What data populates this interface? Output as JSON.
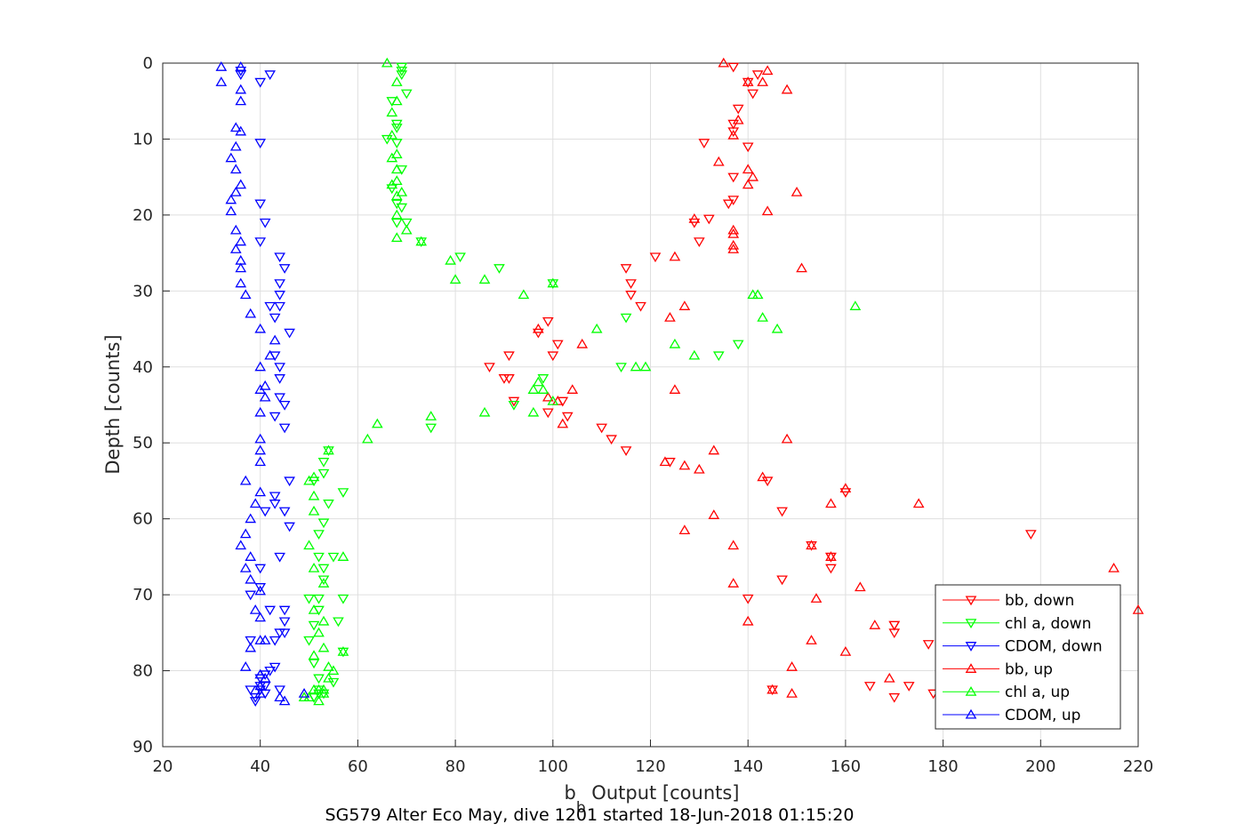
{
  "chart_data": {
    "type": "scatter",
    "title": "",
    "xlabel": "b",
    "xlabel_subscript": "b",
    "xlabel_suffix": " Output [counts]",
    "ylabel": "Depth [counts]",
    "caption": "SG579 Alter Eco May, dive 1201 started 18-Jun-2018 01:15:20",
    "xlim": [
      20,
      220
    ],
    "ylim": [
      0,
      90
    ],
    "y_reversed": true,
    "grid": true,
    "legend_position": "bottom-right",
    "x_ticks": [
      "20",
      "40",
      "60",
      "80",
      "100",
      "120",
      "140",
      "160",
      "180",
      "200",
      "220"
    ],
    "y_ticks": [
      "0",
      "10",
      "20",
      "30",
      "40",
      "50",
      "60",
      "70",
      "80",
      "90"
    ],
    "series": [
      {
        "name": "bb, down",
        "color": "#ff0000",
        "marker": "triangle-down",
        "x": [
          137,
          142,
          140,
          141,
          138,
          137,
          137,
          131,
          140,
          137,
          137,
          136,
          132,
          129,
          130,
          121,
          115,
          116,
          116,
          118,
          99,
          97,
          101,
          100,
          91,
          87,
          90,
          91,
          92,
          102,
          99,
          103,
          110,
          112,
          115,
          124,
          147,
          153,
          157,
          157,
          147,
          140,
          170,
          170,
          170,
          177,
          173,
          178,
          170,
          157,
          198,
          145,
          160,
          165,
          144
        ],
        "y": [
          0.5,
          1.5,
          2.5,
          4,
          6,
          8,
          9,
          10.5,
          11,
          15,
          18,
          18.5,
          20.5,
          21,
          23.5,
          25.5,
          27,
          29,
          30.5,
          32,
          34,
          35.5,
          37,
          38.5,
          38.5,
          40,
          41.5,
          41.5,
          44.5,
          44.5,
          46,
          46.5,
          48,
          49.5,
          51,
          52.5,
          59,
          63.5,
          65,
          66.5,
          68,
          70.5,
          74,
          75,
          74,
          76.5,
          82,
          83,
          83.5,
          65,
          62,
          82.5,
          56.5,
          82,
          55
        ]
      },
      {
        "name": "chl a, down",
        "color": "#00ff00",
        "marker": "triangle-down",
        "x": [
          69,
          69,
          70,
          67,
          68,
          68,
          66,
          68,
          69,
          67,
          68,
          69,
          68,
          70,
          73,
          81,
          89,
          100,
          115,
          138,
          134,
          114,
          92,
          98,
          69,
          75,
          53,
          57,
          54,
          53,
          52,
          52,
          53,
          53,
          52,
          52,
          51,
          50,
          51,
          52,
          53,
          52,
          51,
          52,
          51,
          55,
          57,
          55,
          56,
          57,
          53,
          51,
          50,
          54
        ],
        "y": [
          1,
          1.5,
          4,
          5,
          8,
          8.5,
          10,
          10.5,
          14,
          16.5,
          18.5,
          19,
          21,
          21,
          23.5,
          25.5,
          27,
          29,
          33.5,
          37,
          38.5,
          40,
          45,
          41.5,
          0.5,
          48,
          52.5,
          56.5,
          58,
          60.5,
          62,
          65,
          66.5,
          68,
          70.5,
          72,
          74,
          76,
          79,
          81,
          83,
          82.5,
          83.5,
          83,
          83.5,
          81.5,
          77.5,
          65,
          73.5,
          70.5,
          54,
          55,
          70.5,
          51
        ]
      },
      {
        "name": "CDOM, down",
        "color": "#0000ff",
        "marker": "triangle-down",
        "x": [
          36,
          42,
          36,
          40,
          40,
          40,
          41,
          40,
          44,
          45,
          44,
          44,
          42,
          44,
          43,
          46,
          43,
          44,
          44,
          45,
          44,
          43,
          45,
          46,
          43,
          43,
          41,
          45,
          46,
          44,
          40,
          40,
          38,
          38,
          42,
          42,
          40,
          40,
          38,
          41,
          43,
          45,
          45,
          45,
          44,
          43,
          41,
          41,
          39,
          39,
          40,
          44
        ],
        "y": [
          1,
          1.5,
          1.5,
          2.5,
          10.5,
          18.5,
          21,
          23.5,
          25.5,
          27,
          29,
          30.5,
          32,
          32,
          33.5,
          35.5,
          38.5,
          40,
          41.5,
          45,
          44,
          46.5,
          48,
          55,
          57,
          58,
          59,
          59,
          61,
          65,
          66.5,
          69,
          70,
          76,
          72,
          80,
          81,
          82,
          82.5,
          83,
          79.5,
          75,
          73.5,
          72,
          75,
          76,
          80.5,
          82,
          83.5,
          84,
          82.5,
          82.5
        ]
      },
      {
        "name": "bb, up",
        "color": "#ff0000",
        "marker": "triangle-up",
        "x": [
          135,
          144,
          143,
          140,
          148,
          138,
          137,
          134,
          140,
          141,
          140,
          150,
          137,
          144,
          137,
          137,
          137,
          125,
          151,
          127,
          124,
          129,
          106,
          104,
          125,
          101,
          97,
          102,
          99,
          148,
          133,
          127,
          123,
          130,
          143,
          160,
          157,
          175,
          137,
          133,
          127,
          153,
          157,
          137,
          163,
          154,
          166,
          140,
          160,
          153,
          149,
          169,
          145,
          149,
          215,
          220
        ],
        "y": [
          0,
          1,
          2.5,
          2.5,
          3.5,
          7.5,
          9.5,
          13,
          14,
          15,
          16,
          17,
          22,
          19.5,
          22.5,
          24,
          24.5,
          25.5,
          27,
          32,
          33.5,
          20.5,
          37,
          43,
          43,
          44.5,
          35,
          47.5,
          44,
          49.5,
          51,
          53,
          52.5,
          53.5,
          54.5,
          56,
          58,
          58,
          63.5,
          59.5,
          61.5,
          63.5,
          65,
          68.5,
          69,
          70.5,
          74,
          73.5,
          77.5,
          76,
          79.5,
          81,
          82.5,
          83,
          66.5,
          72
        ]
      },
      {
        "name": "chl a, up",
        "color": "#00ff00",
        "marker": "triangle-up",
        "x": [
          66,
          68,
          68,
          67,
          67,
          68,
          67,
          68,
          68,
          69,
          67,
          68,
          68,
          70,
          68,
          73,
          79,
          80,
          86,
          94,
          100,
          109,
          125,
          129,
          143,
          146,
          162,
          142,
          141,
          119,
          117,
          97,
          98,
          96,
          100,
          96,
          86,
          75,
          64,
          62,
          54,
          51,
          50,
          51,
          51,
          50,
          51,
          53,
          51,
          53,
          52,
          51,
          53,
          55,
          57,
          57,
          54,
          53,
          52,
          53,
          54,
          51,
          49,
          50,
          52
        ],
        "y": [
          0,
          2.5,
          5,
          6.5,
          9.5,
          12,
          12.5,
          14,
          15.5,
          17,
          16,
          17.5,
          20,
          22,
          23,
          23.5,
          26,
          28.5,
          28.5,
          30.5,
          29,
          35,
          37,
          38.5,
          33.5,
          35,
          32,
          30.5,
          30.5,
          40,
          40,
          42,
          43,
          43,
          44.5,
          46,
          46,
          46.5,
          47.5,
          49.5,
          51,
          54.5,
          55,
          57,
          59,
          63.5,
          66.5,
          68.5,
          72,
          73.5,
          75,
          78,
          77,
          80,
          77.5,
          65,
          79.5,
          82.5,
          84,
          83,
          81,
          82.5,
          83.5,
          83.5,
          82.5
        ]
      },
      {
        "name": "CDOM, up",
        "color": "#0000ff",
        "marker": "triangle-up",
        "x": [
          32,
          32,
          36,
          36,
          36,
          35,
          36,
          35,
          34,
          35,
          36,
          35,
          34,
          34,
          35,
          36,
          35,
          36,
          36,
          36,
          37,
          38,
          40,
          43,
          42,
          40,
          41,
          40,
          41,
          40,
          40,
          40,
          40,
          37,
          40,
          39,
          38,
          37,
          36,
          38,
          37,
          38,
          40,
          39,
          40,
          37,
          40,
          40,
          41,
          38,
          40,
          41,
          40,
          44,
          45,
          49
        ],
        "y": [
          0.5,
          2.5,
          0.5,
          3.5,
          5,
          8.5,
          9,
          11,
          12.5,
          14,
          16,
          17,
          18,
          19.5,
          22,
          23.5,
          24.5,
          26,
          27,
          29,
          30.5,
          33,
          35,
          36.5,
          38.5,
          40,
          42.5,
          43,
          44,
          46,
          49.5,
          51,
          52.5,
          55,
          56.5,
          58,
          60,
          62,
          63.5,
          65,
          66.5,
          68,
          69.5,
          72,
          73,
          79.5,
          80.5,
          82,
          81,
          77,
          76,
          76,
          83,
          83.5,
          84,
          83
        ]
      }
    ]
  }
}
